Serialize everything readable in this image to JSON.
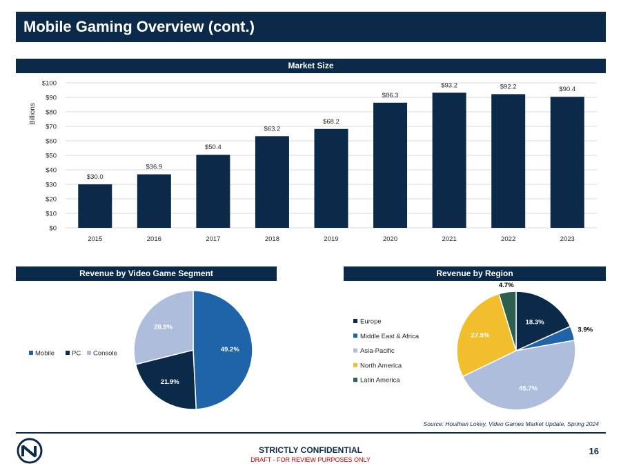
{
  "title": "Mobile Gaming Overview (cont.)",
  "sections": {
    "market": "Market Size",
    "segment": "Revenue by Video Game Segment",
    "region": "Revenue by Region"
  },
  "chart_data": [
    {
      "type": "bar",
      "title": "Market Size",
      "ylabel": "Billions",
      "xlabel": "",
      "categories": [
        "2015",
        "2016",
        "2017",
        "2018",
        "2019",
        "2020",
        "2021",
        "2022",
        "2023"
      ],
      "values": [
        30.0,
        36.9,
        50.4,
        63.2,
        68.2,
        86.3,
        93.2,
        92.2,
        90.4
      ],
      "labels": [
        "$30.0",
        "$36.9",
        "$50.4",
        "$63.2",
        "$68.2",
        "$86.3",
        "$93.2",
        "$92.2",
        "$90.4"
      ],
      "ylim": [
        0,
        100
      ],
      "yticks": [
        "$0",
        "$10",
        "$20",
        "$30",
        "$40",
        "$50",
        "$60",
        "$70",
        "$80",
        "$90",
        "$100"
      ],
      "grid": true,
      "color": "#0b2a4a"
    },
    {
      "type": "pie",
      "title": "Revenue by Video Game Segment",
      "legend_position": "left",
      "slices": [
        {
          "name": "Mobile",
          "value": 49.2,
          "label": "49.2%",
          "color": "#1f63a8"
        },
        {
          "name": "PC",
          "value": 21.9,
          "label": "21.9%",
          "color": "#0b2a4a"
        },
        {
          "name": "Console",
          "value": 28.9,
          "label": "28.9%",
          "color": "#aebddc"
        }
      ]
    },
    {
      "type": "pie",
      "title": "Revenue by Region",
      "legend_position": "left",
      "slices": [
        {
          "name": "Europe",
          "value": 18.3,
          "label": "18.3%",
          "color": "#0b2a4a"
        },
        {
          "name": "Middle East & Africa",
          "value": 3.9,
          "label": "3.9%",
          "color": "#1f63a8"
        },
        {
          "name": "Asia-Pacific",
          "value": 45.7,
          "label": "45.7%",
          "color": "#aebddc"
        },
        {
          "name": "North America",
          "value": 27.5,
          "label": "27.5%",
          "color": "#f1be2e"
        },
        {
          "name": "Latin America",
          "value": 4.7,
          "label": "4.7%",
          "color": "#2e5e4e"
        }
      ]
    }
  ],
  "source": "Source: Houlihan Lokey, Video Games Market Update, Spring 2024",
  "footer": {
    "confidential": "STRICTLY CONFIDENTIAL",
    "draft": "DRAFT - FOR REVIEW PURPOSES ONLY",
    "page": "16"
  }
}
